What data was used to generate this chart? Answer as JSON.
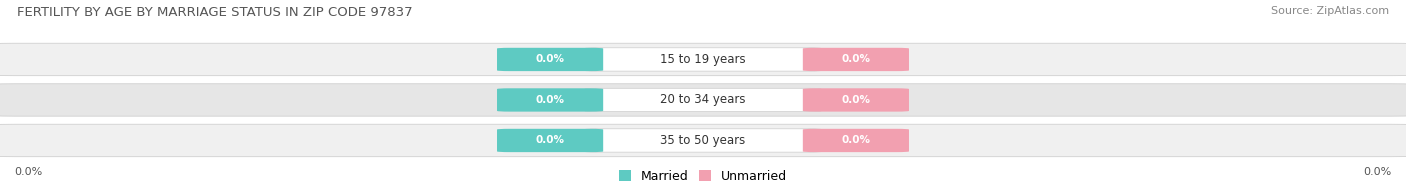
{
  "title": "FERTILITY BY AGE BY MARRIAGE STATUS IN ZIP CODE 97837",
  "source": "Source: ZipAtlas.com",
  "categories": [
    "15 to 19 years",
    "20 to 34 years",
    "35 to 50 years"
  ],
  "married_values": [
    0.0,
    0.0,
    0.0
  ],
  "unmarried_values": [
    0.0,
    0.0,
    0.0
  ],
  "married_color": "#5ecac2",
  "unmarried_color": "#f2a0b0",
  "bar_bg_light": "#f0f0f0",
  "bar_bg_dark": "#e6e6e6",
  "bar_outline": "#d0d0d0",
  "title_fontsize": 9.5,
  "source_fontsize": 8,
  "label_fontsize": 8.5,
  "value_fontsize": 7.5,
  "legend_married": "Married",
  "legend_unmarried": "Unmarried",
  "left_tick": "0.0%",
  "right_tick": "0.0%",
  "background_color": "#ffffff"
}
